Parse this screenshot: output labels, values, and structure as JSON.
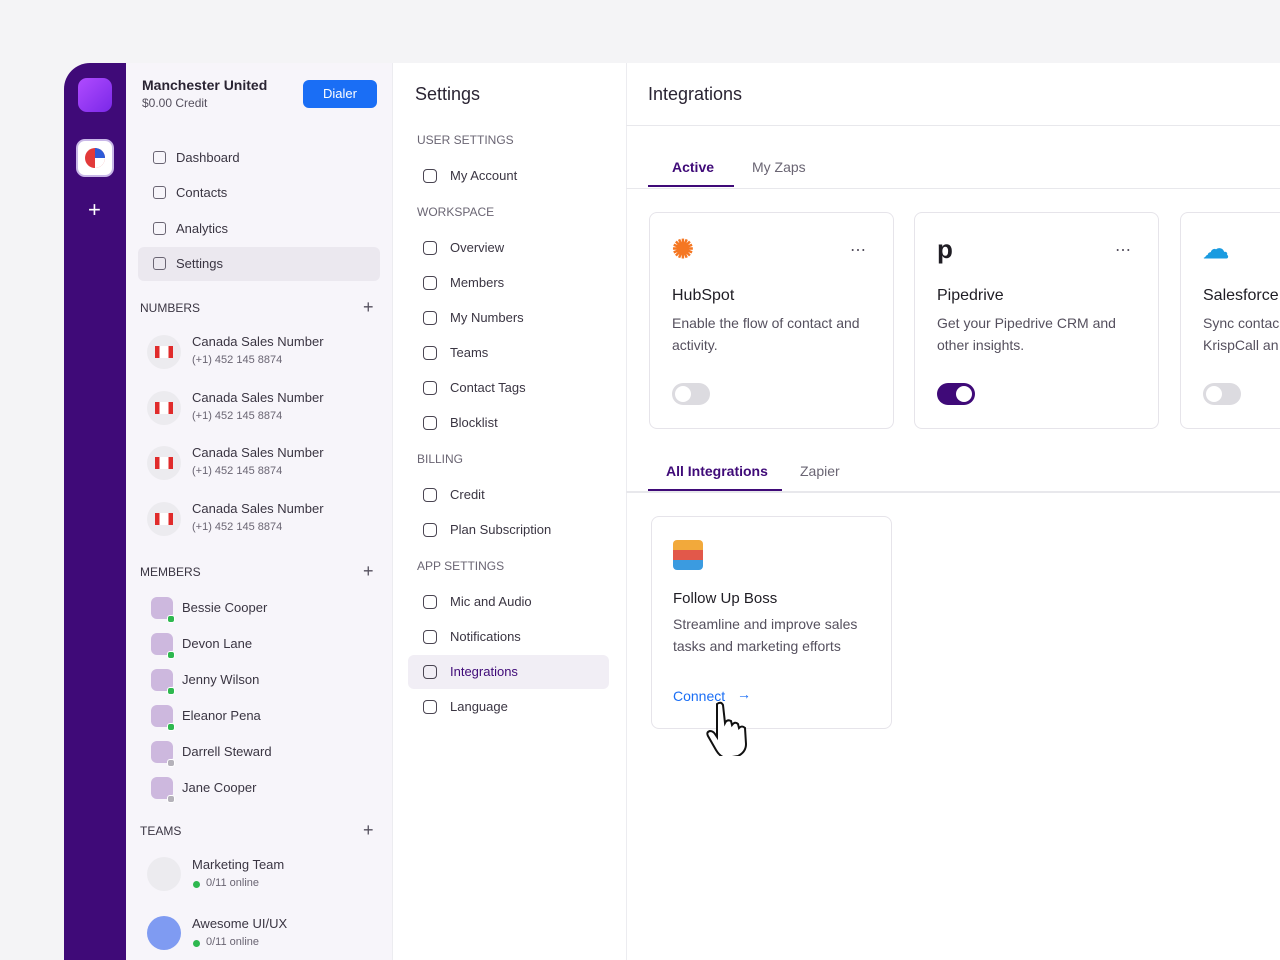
{
  "sidebar": {
    "workspace": "Manchester United",
    "credit": "$0.00 Credit",
    "dialer": "Dialer",
    "nav": [
      "Dashboard",
      "Contacts",
      "Analytics",
      "Settings"
    ],
    "numbers": {
      "title": "NUMBERS",
      "items": [
        {
          "name": "Canada Sales Number",
          "phone": "(+1) 452 145 8874"
        },
        {
          "name": "Canada Sales Number",
          "phone": "(+1) 452 145 8874"
        },
        {
          "name": "Canada Sales Number",
          "phone": "(+1) 452 145 8874"
        },
        {
          "name": "Canada Sales Number",
          "phone": "(+1) 452 145 8874"
        }
      ]
    },
    "members": {
      "title": "MEMBERS",
      "items": [
        "Bessie Cooper",
        "Devon Lane",
        "Jenny Wilson",
        "Eleanor Pena",
        "Darrell Steward",
        "Jane Cooper"
      ]
    },
    "teams": {
      "title": "TEAMS",
      "items": [
        {
          "name": "Marketing Team",
          "status": "0/11 online"
        },
        {
          "name": "Awesome UI/UX",
          "status": "0/11 online"
        }
      ]
    }
  },
  "settings": {
    "title": "Settings",
    "groups": [
      {
        "label": "USER SETTINGS",
        "items": [
          "My Account"
        ]
      },
      {
        "label": "WORKSPACE",
        "items": [
          "Overview",
          "Members",
          "My Numbers",
          "Teams",
          "Contact Tags",
          "Blocklist"
        ]
      },
      {
        "label": "BILLING",
        "items": [
          "Credit",
          "Plan Subscription"
        ]
      },
      {
        "label": "APP SETTINGS",
        "items": [
          "Mic and Audio",
          "Notifications",
          "Integrations",
          "Language"
        ]
      }
    ]
  },
  "integrations": {
    "title": "Integrations",
    "tabs": [
      "Active",
      "My Zaps"
    ],
    "active_cards": [
      {
        "name": "HubSpot",
        "description": [
          "Enable the flow of contact and",
          "activity."
        ]
      },
      {
        "name": "Pipedrive",
        "description": [
          "Get your Pipedrive CRM and",
          "other insights."
        ]
      },
      {
        "name": "Salesforce",
        "description": [
          "Sync contac",
          "KrispCall an"
        ]
      }
    ],
    "sub_tabs": [
      "All Integrations",
      "Zapier"
    ],
    "cards": [
      {
        "name": "Follow Up Boss",
        "description": [
          "Streamline and improve sales",
          "tasks and marketing efforts"
        ],
        "action": "Connect"
      }
    ]
  }
}
